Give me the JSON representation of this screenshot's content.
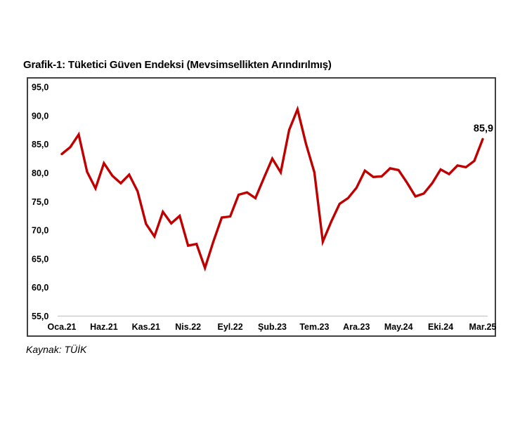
{
  "header": {
    "title": "Grafik-1: Tüketici Güven Endeksi (Mevsimsellikten Arındırılmış)"
  },
  "footer": {
    "source": "Kaynak: TÜİK"
  },
  "chart_data": {
    "type": "line",
    "title": "Grafik-1: Tüketici Güven Endeksi (Mevsimsellikten Arındırılmış)",
    "x_unit": "month",
    "n_points": 51,
    "x_range": [
      "Oca.21",
      "Mar.25"
    ],
    "x_ticks": [
      {
        "index": 0,
        "label": "Oca.21"
      },
      {
        "index": 5,
        "label": "Haz.21"
      },
      {
        "index": 10,
        "label": "Kas.21"
      },
      {
        "index": 15,
        "label": "Nis.22"
      },
      {
        "index": 20,
        "label": "Eyl.22"
      },
      {
        "index": 25,
        "label": "Şub.23"
      },
      {
        "index": 30,
        "label": "Tem.23"
      },
      {
        "index": 35,
        "label": "Ara.23"
      },
      {
        "index": 40,
        "label": "May.24"
      },
      {
        "index": 45,
        "label": "Eki.24"
      },
      {
        "index": 50,
        "label": "Mar.25"
      }
    ],
    "y_ticks": [
      {
        "value": 95,
        "label": "95,0"
      },
      {
        "value": 90,
        "label": "90,0"
      },
      {
        "value": 85,
        "label": "85,0"
      },
      {
        "value": 80,
        "label": "80,0"
      },
      {
        "value": 75,
        "label": "75,0"
      },
      {
        "value": 70,
        "label": "70,0"
      },
      {
        "value": 65,
        "label": "65,0"
      },
      {
        "value": 60,
        "label": "60,0"
      },
      {
        "value": 55,
        "label": "55,0"
      }
    ],
    "ylim": [
      55,
      95
    ],
    "values": [
      83.3,
      84.5,
      86.7,
      80.2,
      77.3,
      81.7,
      79.5,
      78.2,
      79.7,
      76.8,
      71.1,
      68.9,
      73.2,
      71.2,
      72.5,
      67.3,
      67.6,
      63.4,
      68.0,
      72.2,
      72.4,
      76.2,
      76.6,
      75.6,
      79.1,
      82.5,
      80.1,
      87.5,
      91.1,
      85.1,
      80.1,
      68.0,
      71.5,
      74.6,
      75.6,
      77.4,
      80.4,
      79.3,
      79.4,
      80.8,
      80.5,
      78.3,
      75.9,
      76.4,
      78.2,
      80.6,
      79.8,
      81.3,
      81.0,
      82.1,
      85.9
    ],
    "last_value_label": "85,9",
    "legend": "none",
    "grid": "baseline-only",
    "colors": {
      "line": "#c00000",
      "axis_line": "#c6c6c6",
      "frame_border": "#404040",
      "text": "#000000"
    }
  }
}
